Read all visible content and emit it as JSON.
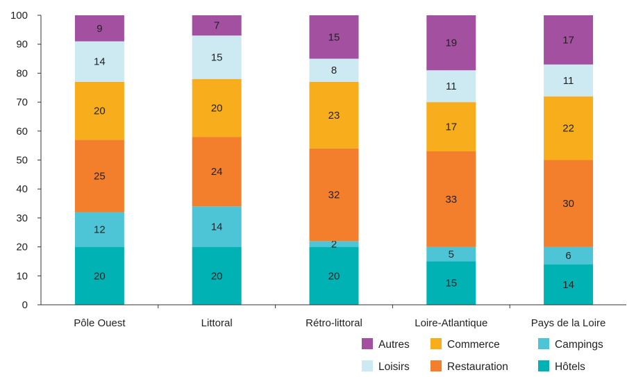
{
  "chart_data": {
    "type": "bar",
    "stacked": true,
    "title": "",
    "xlabel": "",
    "ylabel": "",
    "ylim": [
      0,
      100
    ],
    "yticks": [
      0,
      10,
      20,
      30,
      40,
      50,
      60,
      70,
      80,
      90,
      100
    ],
    "grid": false,
    "legend_position": "bottom-right",
    "categories": [
      "Pôle Ouest",
      "Littoral",
      "Rétro-littoral",
      "Loire-Atlantique",
      "Pays de la Loire"
    ],
    "series": [
      {
        "name": "Hôtels",
        "color": "#00b2b4",
        "values": [
          20,
          20,
          20,
          15,
          14
        ]
      },
      {
        "name": "Campings",
        "color": "#4dc5d6",
        "values": [
          12,
          14,
          2,
          5,
          6
        ]
      },
      {
        "name": "Restauration",
        "color": "#f37f2c",
        "values": [
          25,
          24,
          32,
          33,
          30
        ]
      },
      {
        "name": "Commerce",
        "color": "#f8ad1c",
        "values": [
          20,
          20,
          23,
          17,
          22
        ]
      },
      {
        "name": "Loisirs",
        "color": "#cdeaf3",
        "values": [
          14,
          15,
          8,
          11,
          11
        ]
      },
      {
        "name": "Autres",
        "color": "#a2509f",
        "values": [
          9,
          7,
          15,
          19,
          17
        ]
      }
    ],
    "legend_order": [
      "Autres",
      "Commerce",
      "Campings",
      "Loisirs",
      "Restauration",
      "Hôtels"
    ]
  }
}
